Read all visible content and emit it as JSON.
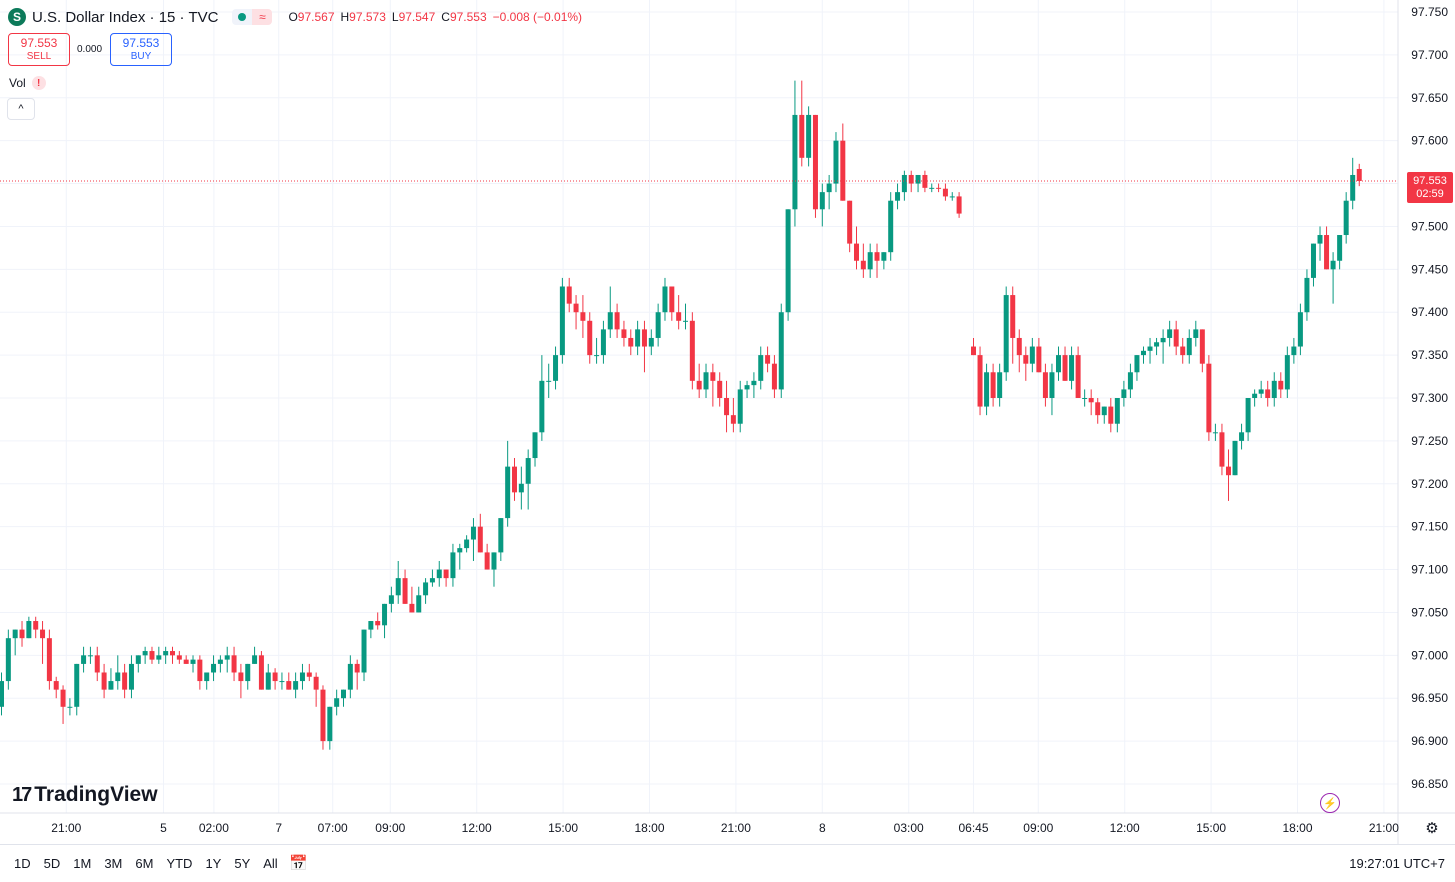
{
  "header": {
    "symbol_icon": "S",
    "title": "U.S. Dollar Index · 15 · TVC",
    "open_label": "O",
    "open": "97.567",
    "high_label": "H",
    "high": "97.573",
    "low_label": "L",
    "low": "97.547",
    "close_label": "C",
    "close": "97.553",
    "change": "−0.008 (−0.01%)"
  },
  "trade": {
    "sell_price": "97.553",
    "sell_label": "SELL",
    "spread": "0.000",
    "buy_price": "97.553",
    "buy_label": "BUY"
  },
  "indicators": {
    "vol_label": "Vol",
    "warning": "!",
    "collapse": "^"
  },
  "brand": {
    "logo_text": "TradingView",
    "logo_mark": "17"
  },
  "price_tag": {
    "price": "97.553",
    "countdown": "02:59"
  },
  "bottom": {
    "ranges": [
      "1D",
      "5D",
      "1M",
      "3M",
      "6M",
      "YTD",
      "1Y",
      "5Y",
      "All"
    ],
    "clock": "19:27:01 UTC+7"
  },
  "colors": {
    "up": "#089981",
    "down": "#f23645",
    "grid": "#f0f3fa",
    "text": "#131722"
  },
  "icons": [
    "dollar-symbol-icon",
    "market-status-dot-icon",
    "wave-icon",
    "warning-icon",
    "chevron-up-icon",
    "goto-date-icon",
    "lightning-icon",
    "settings-icon"
  ],
  "chart_data": {
    "type": "candlestick",
    "y_ticks": [
      "97.750",
      "97.700",
      "97.650",
      "97.600",
      "97.550",
      "97.500",
      "97.450",
      "97.400",
      "97.350",
      "97.300",
      "97.250",
      "97.200",
      "97.150",
      "97.100",
      "97.050",
      "97.000",
      "96.950",
      "96.900",
      "96.850"
    ],
    "y_range": [
      96.84,
      97.76
    ],
    "last_price": 97.553,
    "x_labels": [
      {
        "label": "21:00",
        "index": 9
      },
      {
        "label": "5",
        "index": 22.5
      },
      {
        "label": "02:00",
        "index": 29.5
      },
      {
        "label": "7",
        "index": 38.5
      },
      {
        "label": "07:00",
        "index": 46
      },
      {
        "label": "09:00",
        "index": 54
      },
      {
        "label": "12:00",
        "index": 66
      },
      {
        "label": "15:00",
        "index": 78
      },
      {
        "label": "18:00",
        "index": 90
      },
      {
        "label": "21:00",
        "index": 102
      },
      {
        "label": "8",
        "index": 114
      },
      {
        "label": "03:00",
        "index": 126
      },
      {
        "label": "06:45",
        "index": 135
      },
      {
        "label": "09:00",
        "index": 144
      },
      {
        "label": "12:00",
        "index": 156
      },
      {
        "label": "15:00",
        "index": 168
      },
      {
        "label": "18:00",
        "index": 180
      },
      {
        "label": "21:00",
        "index": 192
      }
    ],
    "candles": [
      [
        96.94,
        96.98,
        96.93,
        96.97
      ],
      [
        96.97,
        97.03,
        96.96,
        97.02
      ],
      [
        97.02,
        97.03,
        97.0,
        97.03
      ],
      [
        97.03,
        97.04,
        97.01,
        97.02
      ],
      [
        97.02,
        97.045,
        97.02,
        97.04
      ],
      [
        97.04,
        97.045,
        97.02,
        97.03
      ],
      [
        97.03,
        97.04,
        96.99,
        97.02
      ],
      [
        97.02,
        97.03,
        96.96,
        96.97
      ],
      [
        96.97,
        96.975,
        96.95,
        96.96
      ],
      [
        96.96,
        96.965,
        96.92,
        96.94
      ],
      [
        96.94,
        96.95,
        96.93,
        96.94
      ],
      [
        96.94,
        96.99,
        96.93,
        96.99
      ],
      [
        96.99,
        97.01,
        96.98,
        97.0
      ],
      [
        97.0,
        97.01,
        96.99,
        97.0
      ],
      [
        97.0,
        97.01,
        96.97,
        96.98
      ],
      [
        96.98,
        96.99,
        96.95,
        96.96
      ],
      [
        96.96,
        96.985,
        96.96,
        96.97
      ],
      [
        96.97,
        97.0,
        96.96,
        96.98
      ],
      [
        96.98,
        96.99,
        96.95,
        96.96
      ],
      [
        96.96,
        97.0,
        96.95,
        96.99
      ],
      [
        96.99,
        97.0,
        96.98,
        97.0
      ],
      [
        97.0,
        97.01,
        96.99,
        97.005
      ],
      [
        97.005,
        97.01,
        96.99,
        96.995
      ],
      [
        96.995,
        97.01,
        96.99,
        97.0
      ],
      [
        97.0,
        97.01,
        96.99,
        97.005
      ],
      [
        97.005,
        97.01,
        96.99,
        97.0
      ],
      [
        97.0,
        97.005,
        96.99,
        96.995
      ],
      [
        96.995,
        97.0,
        96.99,
        96.99
      ],
      [
        96.99,
        97.0,
        96.98,
        96.995
      ],
      [
        96.995,
        97.0,
        96.96,
        96.97
      ],
      [
        96.97,
        96.98,
        96.96,
        96.98
      ],
      [
        96.98,
        97.0,
        96.97,
        96.99
      ],
      [
        96.99,
        97.0,
        96.98,
        96.995
      ],
      [
        96.995,
        97.01,
        96.98,
        97.0
      ],
      [
        97.0,
        97.01,
        96.97,
        96.98
      ],
      [
        96.98,
        96.99,
        96.95,
        96.97
      ],
      [
        96.97,
        96.99,
        96.96,
        96.99
      ],
      [
        96.99,
        97.01,
        96.99,
        97.0
      ],
      [
        97.0,
        97.005,
        96.96,
        96.96
      ],
      [
        96.96,
        96.99,
        96.96,
        96.98
      ],
      [
        96.98,
        96.985,
        96.96,
        96.97
      ],
      [
        96.97,
        96.98,
        96.96,
        96.97
      ],
      [
        96.97,
        96.98,
        96.96,
        96.96
      ],
      [
        96.96,
        96.98,
        96.95,
        96.97
      ],
      [
        96.97,
        96.99,
        96.96,
        96.98
      ],
      [
        96.98,
        96.99,
        96.97,
        96.975
      ],
      [
        96.975,
        96.98,
        96.94,
        96.96
      ],
      [
        96.96,
        96.965,
        96.89,
        96.9
      ],
      [
        96.9,
        96.94,
        96.89,
        96.94
      ],
      [
        96.94,
        96.96,
        96.93,
        96.95
      ],
      [
        96.95,
        96.96,
        96.94,
        96.96
      ],
      [
        96.96,
        97.0,
        96.95,
        96.99
      ],
      [
        96.99,
        96.995,
        96.96,
        96.98
      ],
      [
        96.98,
        97.03,
        96.97,
        97.03
      ],
      [
        97.03,
        97.04,
        97.02,
        97.04
      ],
      [
        97.04,
        97.05,
        97.03,
        97.035
      ],
      [
        97.035,
        97.06,
        97.02,
        97.06
      ],
      [
        97.06,
        97.08,
        97.05,
        97.07
      ],
      [
        97.07,
        97.11,
        97.06,
        97.09
      ],
      [
        97.09,
        97.1,
        97.06,
        97.06
      ],
      [
        97.06,
        97.08,
        97.05,
        97.05
      ],
      [
        97.05,
        97.08,
        97.05,
        97.07
      ],
      [
        97.07,
        97.09,
        97.06,
        97.085
      ],
      [
        97.085,
        97.1,
        97.08,
        97.09
      ],
      [
        97.09,
        97.11,
        97.08,
        97.1
      ],
      [
        97.1,
        97.1,
        97.08,
        97.09
      ],
      [
        97.09,
        97.13,
        97.08,
        97.12
      ],
      [
        97.12,
        97.13,
        97.1,
        97.125
      ],
      [
        97.125,
        97.14,
        97.12,
        97.135
      ],
      [
        97.135,
        97.16,
        97.11,
        97.15
      ],
      [
        97.15,
        97.165,
        97.12,
        97.12
      ],
      [
        97.12,
        97.13,
        97.1,
        97.1
      ],
      [
        97.1,
        97.12,
        97.08,
        97.12
      ],
      [
        97.12,
        97.16,
        97.11,
        97.16
      ],
      [
        97.16,
        97.25,
        97.15,
        97.22
      ],
      [
        97.22,
        97.23,
        97.18,
        97.19
      ],
      [
        97.19,
        97.22,
        97.17,
        97.2
      ],
      [
        97.2,
        97.24,
        97.17,
        97.23
      ],
      [
        97.23,
        97.26,
        97.22,
        97.26
      ],
      [
        97.26,
        97.35,
        97.25,
        97.32
      ],
      [
        97.32,
        97.34,
        97.3,
        97.32
      ],
      [
        97.32,
        97.36,
        97.31,
        97.35
      ],
      [
        97.35,
        97.44,
        97.34,
        97.43
      ],
      [
        97.43,
        97.44,
        97.4,
        97.41
      ],
      [
        97.41,
        97.42,
        97.38,
        97.4
      ],
      [
        97.4,
        97.42,
        97.37,
        97.39
      ],
      [
        97.39,
        97.4,
        97.34,
        97.35
      ],
      [
        97.35,
        97.37,
        97.34,
        97.35
      ],
      [
        97.35,
        97.39,
        97.34,
        97.38
      ],
      [
        97.38,
        97.43,
        97.37,
        97.4
      ],
      [
        97.4,
        97.41,
        97.37,
        97.38
      ],
      [
        97.38,
        97.39,
        97.36,
        97.37
      ],
      [
        97.37,
        97.38,
        97.35,
        97.36
      ],
      [
        97.36,
        97.39,
        97.35,
        97.38
      ],
      [
        97.38,
        97.39,
        97.33,
        97.36
      ],
      [
        97.36,
        97.38,
        97.35,
        97.37
      ],
      [
        97.37,
        97.41,
        97.36,
        97.4
      ],
      [
        97.4,
        97.44,
        97.39,
        97.43
      ],
      [
        97.43,
        97.43,
        97.39,
        97.4
      ],
      [
        97.4,
        97.42,
        97.38,
        97.39
      ],
      [
        97.39,
        97.41,
        97.38,
        97.39
      ],
      [
        97.39,
        97.4,
        97.31,
        97.32
      ],
      [
        97.32,
        97.34,
        97.3,
        97.31
      ],
      [
        97.31,
        97.34,
        97.3,
        97.33
      ],
      [
        97.33,
        97.34,
        97.29,
        97.32
      ],
      [
        97.32,
        97.33,
        97.29,
        97.3
      ],
      [
        97.3,
        97.32,
        97.26,
        97.28
      ],
      [
        97.28,
        97.3,
        97.26,
        97.27
      ],
      [
        97.27,
        97.32,
        97.26,
        97.31
      ],
      [
        97.31,
        97.32,
        97.3,
        97.315
      ],
      [
        97.315,
        97.33,
        97.3,
        97.32
      ],
      [
        97.32,
        97.36,
        97.31,
        97.35
      ],
      [
        97.35,
        97.36,
        97.33,
        97.34
      ],
      [
        97.34,
        97.35,
        97.3,
        97.31
      ],
      [
        97.31,
        97.41,
        97.3,
        97.4
      ],
      [
        97.4,
        97.52,
        97.39,
        97.52
      ],
      [
        97.52,
        97.67,
        97.5,
        97.63
      ],
      [
        97.63,
        97.67,
        97.57,
        97.58
      ],
      [
        97.58,
        97.64,
        97.57,
        97.63
      ],
      [
        97.63,
        97.63,
        97.51,
        97.52
      ],
      [
        97.52,
        97.55,
        97.5,
        97.54
      ],
      [
        97.54,
        97.56,
        97.52,
        97.55
      ],
      [
        97.55,
        97.61,
        97.54,
        97.6
      ],
      [
        97.6,
        97.62,
        97.53,
        97.53
      ],
      [
        97.53,
        97.53,
        97.47,
        97.48
      ],
      [
        97.48,
        97.5,
        97.45,
        97.46
      ],
      [
        97.46,
        97.48,
        97.44,
        97.45
      ],
      [
        97.45,
        97.48,
        97.44,
        97.47
      ],
      [
        97.47,
        97.48,
        97.44,
        97.46
      ],
      [
        97.46,
        97.47,
        97.45,
        97.47
      ],
      [
        97.47,
        97.54,
        97.46,
        97.53
      ],
      [
        97.53,
        97.55,
        97.52,
        97.54
      ],
      [
        97.54,
        97.565,
        97.53,
        97.56
      ],
      [
        97.56,
        97.565,
        97.54,
        97.55
      ],
      [
        97.55,
        97.56,
        97.54,
        97.56
      ],
      [
        97.56,
        97.565,
        97.54,
        97.545
      ],
      [
        97.545,
        97.55,
        97.54,
        97.545
      ],
      [
        97.545,
        97.55,
        97.54,
        97.544
      ],
      [
        97.544,
        97.55,
        97.53,
        97.535
      ],
      [
        97.535,
        97.54,
        97.53,
        97.535
      ],
      [
        97.535,
        97.54,
        97.51,
        97.515
      ],
      [
        97.36,
        97.37,
        97.35,
        97.35
      ],
      [
        97.35,
        97.36,
        97.28,
        97.29
      ],
      [
        97.29,
        97.34,
        97.28,
        97.33
      ],
      [
        97.33,
        97.34,
        97.29,
        97.3
      ],
      [
        97.3,
        97.34,
        97.29,
        97.33
      ],
      [
        97.33,
        97.43,
        97.32,
        97.42
      ],
      [
        97.42,
        97.43,
        97.34,
        97.37
      ],
      [
        97.37,
        97.38,
        97.33,
        97.35
      ],
      [
        97.35,
        97.36,
        97.32,
        97.34
      ],
      [
        97.34,
        97.37,
        97.33,
        97.36
      ],
      [
        97.36,
        97.37,
        97.33,
        97.33
      ],
      [
        97.33,
        97.34,
        97.29,
        97.3
      ],
      [
        97.3,
        97.34,
        97.28,
        97.33
      ],
      [
        97.33,
        97.36,
        97.32,
        97.35
      ],
      [
        97.35,
        97.36,
        97.32,
        97.32
      ],
      [
        97.32,
        97.36,
        97.31,
        97.35
      ],
      [
        97.35,
        97.36,
        97.3,
        97.3
      ],
      [
        97.3,
        97.31,
        97.29,
        97.3
      ],
      [
        97.3,
        97.31,
        97.28,
        97.295
      ],
      [
        97.295,
        97.3,
        97.27,
        97.28
      ],
      [
        97.28,
        97.29,
        97.27,
        97.29
      ],
      [
        97.29,
        97.3,
        97.26,
        97.27
      ],
      [
        97.27,
        97.3,
        97.26,
        97.3
      ],
      [
        97.3,
        97.32,
        97.29,
        97.31
      ],
      [
        97.31,
        97.34,
        97.3,
        97.33
      ],
      [
        97.33,
        97.35,
        97.32,
        97.35
      ],
      [
        97.35,
        97.36,
        97.34,
        97.355
      ],
      [
        97.355,
        97.37,
        97.34,
        97.36
      ],
      [
        97.36,
        97.37,
        97.35,
        97.365
      ],
      [
        97.365,
        97.38,
        97.34,
        97.37
      ],
      [
        97.37,
        97.39,
        97.36,
        97.38
      ],
      [
        97.38,
        97.39,
        97.35,
        97.36
      ],
      [
        97.36,
        97.37,
        97.34,
        97.35
      ],
      [
        97.35,
        97.38,
        97.34,
        97.37
      ],
      [
        97.37,
        97.39,
        97.36,
        97.38
      ],
      [
        97.38,
        97.38,
        97.33,
        97.34
      ],
      [
        97.34,
        97.35,
        97.25,
        97.26
      ],
      [
        97.26,
        97.27,
        97.25,
        97.26
      ],
      [
        97.26,
        97.27,
        97.21,
        97.22
      ],
      [
        97.22,
        97.24,
        97.18,
        97.21
      ],
      [
        97.21,
        97.25,
        97.21,
        97.25
      ],
      [
        97.25,
        97.27,
        97.24,
        97.26
      ],
      [
        97.26,
        97.3,
        97.25,
        97.3
      ],
      [
        97.3,
        97.31,
        97.29,
        97.305
      ],
      [
        97.305,
        97.32,
        97.3,
        97.31
      ],
      [
        97.31,
        97.32,
        97.29,
        97.3
      ],
      [
        97.3,
        97.33,
        97.29,
        97.32
      ],
      [
        97.32,
        97.33,
        97.3,
        97.31
      ],
      [
        97.31,
        97.36,
        97.3,
        97.35
      ],
      [
        97.35,
        97.37,
        97.34,
        97.36
      ],
      [
        97.36,
        97.41,
        97.35,
        97.4
      ],
      [
        97.4,
        97.45,
        97.39,
        97.44
      ],
      [
        97.44,
        97.48,
        97.43,
        97.48
      ],
      [
        97.48,
        97.5,
        97.46,
        97.49
      ],
      [
        97.49,
        97.5,
        97.45,
        97.45
      ],
      [
        97.45,
        97.47,
        97.41,
        97.46
      ],
      [
        97.46,
        97.49,
        97.45,
        97.49
      ],
      [
        97.49,
        97.54,
        97.48,
        97.53
      ],
      [
        97.53,
        97.58,
        97.52,
        97.56
      ],
      [
        97.567,
        97.573,
        97.547,
        97.553
      ]
    ]
  }
}
